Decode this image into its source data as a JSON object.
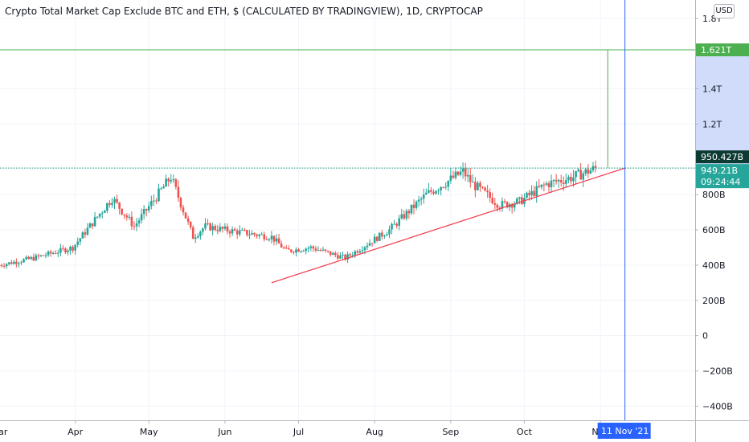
{
  "title": "Crypto Total Market Cap Exclude BTC and ETH, $ (CALCULATED BY TRADINGVIEW), 1D, CRYPTOCAP",
  "currency_button": "USD",
  "colors": {
    "up": "#26a69a",
    "down": "#ef5350",
    "level_line": "#089981",
    "target_line": "#4caf50",
    "trendline": "#f23645",
    "crosshair": "#2962ff",
    "highlight_band": "#d1dcfb"
  },
  "price_tags": {
    "target": "1.621T",
    "last": "950.427B",
    "close": "949.21B",
    "countdown": "09:24:44"
  },
  "crosshair_date_label": "11 Nov '21",
  "chart_data": {
    "type": "candlestick",
    "title": "Crypto Total Market Cap Exclude BTC and ETH, $ (CALCULATED BY TRADINGVIEW), 1D, CRYPTOCAP",
    "y_unit": "USD",
    "ylim": [
      -430000000000,
      1840000000000
    ],
    "y_ticks": [
      {
        "value": 1800000000000,
        "label": "1.8T"
      },
      {
        "value": 1400000000000,
        "label": "1.4T"
      },
      {
        "value": 1200000000000,
        "label": "1.2T"
      },
      {
        "value": 800000000000,
        "label": "800B"
      },
      {
        "value": 600000000000,
        "label": "600B"
      },
      {
        "value": 400000000000,
        "label": "400B"
      },
      {
        "value": 200000000000,
        "label": "200B"
      },
      {
        "value": 0,
        "label": "0"
      },
      {
        "value": -200000000000,
        "label": "−200B"
      },
      {
        "value": -400000000000,
        "label": "−400B"
      }
    ],
    "x_range": [
      "2021-03-01",
      "2021-11-18"
    ],
    "x_ticks": [
      {
        "date": "2021-03-01",
        "label": "Mar"
      },
      {
        "date": "2021-04-01",
        "label": "Apr"
      },
      {
        "date": "2021-05-01",
        "label": "May"
      },
      {
        "date": "2021-06-01",
        "label": "Jun"
      },
      {
        "date": "2021-07-01",
        "label": "Jul"
      },
      {
        "date": "2021-08-01",
        "label": "Aug"
      },
      {
        "date": "2021-09-01",
        "label": "Sep"
      },
      {
        "date": "2021-10-01",
        "label": "Oct"
      },
      {
        "date": "2021-11-01",
        "label": "Nov"
      }
    ],
    "closes": [
      {
        "date": "2021-03-01",
        "close": 400000000000
      },
      {
        "date": "2021-03-15",
        "close": 440000000000
      },
      {
        "date": "2021-03-31",
        "close": 500000000000
      },
      {
        "date": "2021-04-08",
        "close": 640000000000
      },
      {
        "date": "2021-04-16",
        "close": 780000000000
      },
      {
        "date": "2021-04-25",
        "close": 620000000000
      },
      {
        "date": "2021-05-10",
        "close": 900000000000
      },
      {
        "date": "2021-05-19",
        "close": 560000000000
      },
      {
        "date": "2021-05-24",
        "close": 620000000000
      },
      {
        "date": "2021-06-01",
        "close": 600000000000
      },
      {
        "date": "2021-06-20",
        "close": 560000000000
      },
      {
        "date": "2021-06-26",
        "close": 480000000000
      },
      {
        "date": "2021-07-06",
        "close": 500000000000
      },
      {
        "date": "2021-07-20",
        "close": 440000000000
      },
      {
        "date": "2021-08-07",
        "close": 600000000000
      },
      {
        "date": "2021-08-22",
        "close": 800000000000
      },
      {
        "date": "2021-09-06",
        "close": 930000000000
      },
      {
        "date": "2021-09-10",
        "close": 860000000000
      },
      {
        "date": "2021-09-21",
        "close": 740000000000
      },
      {
        "date": "2021-09-29",
        "close": 760000000000
      },
      {
        "date": "2021-10-10",
        "close": 860000000000
      },
      {
        "date": "2021-10-21",
        "close": 900000000000
      },
      {
        "date": "2021-10-30",
        "close": 949210000000
      }
    ],
    "horizontal_level": {
      "value": 950427000000,
      "label": "950.427B"
    },
    "target_level": {
      "value": 1621000000000,
      "label": "1.621T"
    },
    "measure_line": {
      "date": "2021-11-04",
      "from": 950427000000,
      "to": 1621000000000
    },
    "trendline": [
      {
        "date": "2021-06-20",
        "value": 300000000000
      },
      {
        "date": "2021-11-11",
        "value": 950427000000
      }
    ],
    "crosshair": {
      "date": "2021-11-11",
      "label": "11 Nov '21"
    },
    "highlight_band": [
      950427000000,
      1621000000000
    ]
  }
}
